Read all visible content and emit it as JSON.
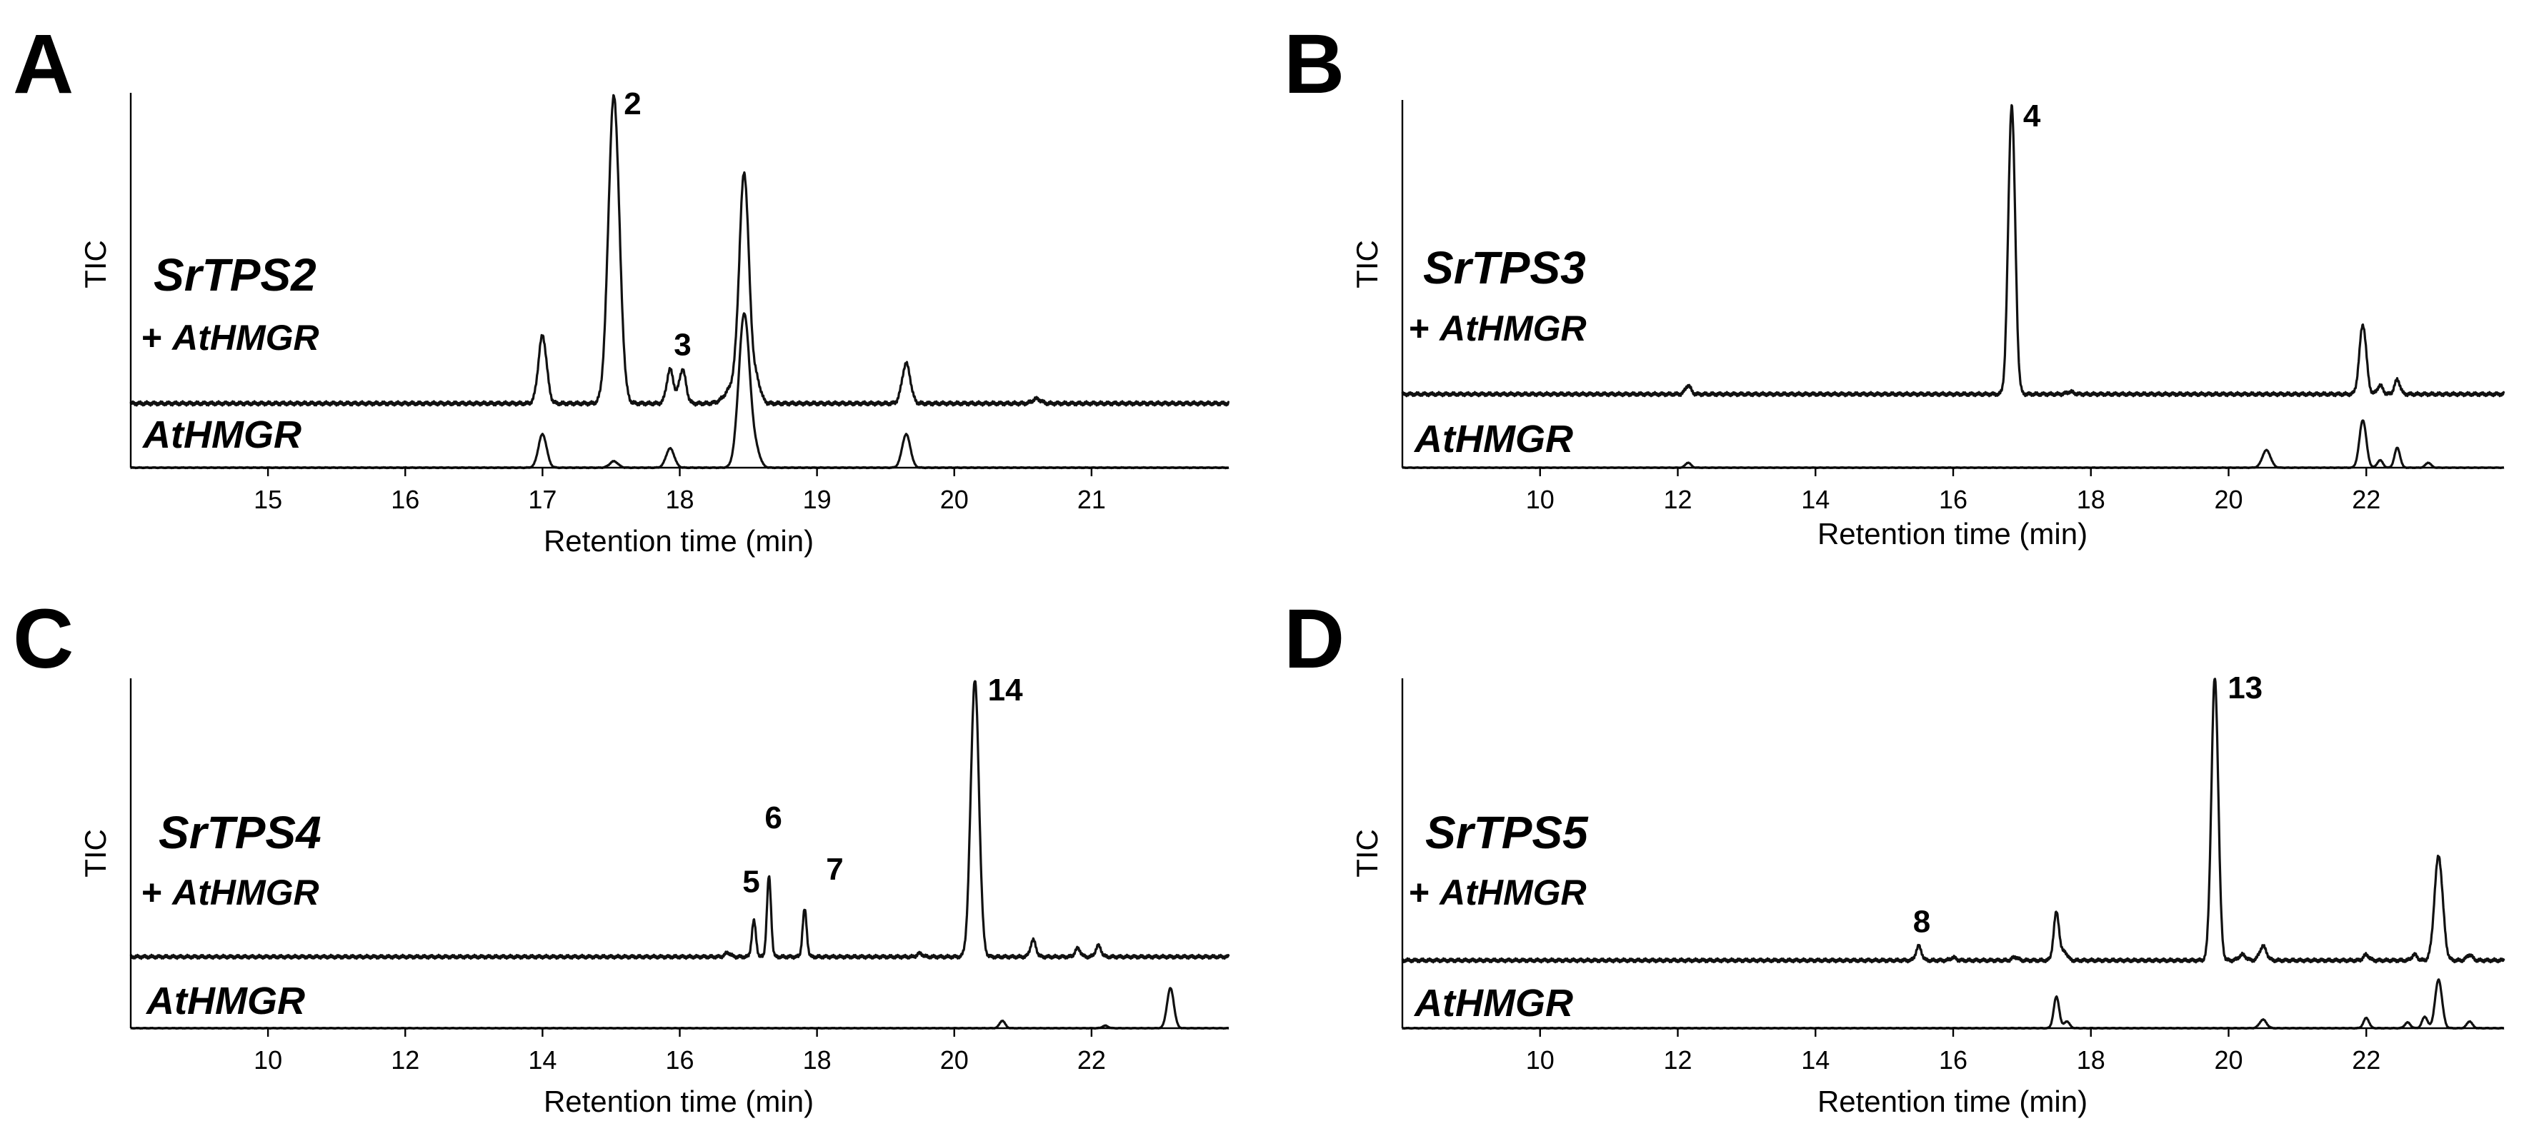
{
  "chart_data": [
    {
      "panel": "A",
      "type": "line",
      "ylabel": "TIC",
      "xlabel": "Retention time (min)",
      "xlim": [
        14.0,
        22.0
      ],
      "xticks": [
        15,
        16,
        17,
        18,
        19,
        20,
        21
      ],
      "sample_name": "SrTPS2",
      "sample_prefix": "+ ",
      "sample_cosubstrate": "AtHMGR",
      "control_name": "AtHMGR",
      "series": [
        {
          "name": "SrTPS2 + AtHMGR",
          "peaks": [
            {
              "x": 17.0,
              "h": 0.22,
              "w": 0.03
            },
            {
              "x": 17.52,
              "h": 1.0,
              "w": 0.04,
              "label": "2"
            },
            {
              "x": 17.93,
              "h": 0.11,
              "w": 0.025
            },
            {
              "x": 18.02,
              "h": 0.11,
              "w": 0.025,
              "label": "3"
            },
            {
              "x": 18.4,
              "h": 0.06,
              "w": 0.06
            },
            {
              "x": 18.47,
              "h": 0.72,
              "w": 0.035
            },
            {
              "x": 18.56,
              "h": 0.07,
              "w": 0.03
            },
            {
              "x": 19.65,
              "h": 0.13,
              "w": 0.03
            },
            {
              "x": 20.6,
              "h": 0.015,
              "w": 0.03
            }
          ]
        },
        {
          "name": "AtHMGR",
          "peaks": [
            {
              "x": 17.0,
              "h": 0.52,
              "w": 0.03
            },
            {
              "x": 17.52,
              "h": 0.1,
              "w": 0.03
            },
            {
              "x": 17.93,
              "h": 0.3,
              "w": 0.03
            },
            {
              "x": 18.47,
              "h": 2.4,
              "w": 0.04
            },
            {
              "x": 18.56,
              "h": 0.2,
              "w": 0.03
            },
            {
              "x": 19.65,
              "h": 0.52,
              "w": 0.03
            }
          ]
        }
      ]
    },
    {
      "panel": "B",
      "type": "line",
      "ylabel": "TIC",
      "xlabel": "Retention time (min)",
      "xlim": [
        8.0,
        24.0
      ],
      "xticks": [
        10,
        12,
        14,
        16,
        18,
        20,
        22
      ],
      "sample_name": "SrTPS3",
      "sample_prefix": "+ ",
      "sample_cosubstrate": "AtHMGR",
      "control_name": "AtHMGR",
      "series": [
        {
          "name": "SrTPS3 + AtHMGR",
          "peaks": [
            {
              "x": 12.15,
              "h": 0.03,
              "w": 0.04
            },
            {
              "x": 16.85,
              "h": 1.0,
              "w": 0.05,
              "label": "4"
            },
            {
              "x": 17.7,
              "h": 0.008,
              "w": 0.05
            },
            {
              "x": 21.95,
              "h": 0.24,
              "w": 0.05
            },
            {
              "x": 22.2,
              "h": 0.03,
              "w": 0.04
            },
            {
              "x": 22.45,
              "h": 0.05,
              "w": 0.04
            }
          ]
        },
        {
          "name": "AtHMGR",
          "peaks": [
            {
              "x": 12.15,
              "h": 0.1,
              "w": 0.04
            },
            {
              "x": 20.55,
              "h": 0.35,
              "w": 0.06
            },
            {
              "x": 21.95,
              "h": 0.95,
              "w": 0.05
            },
            {
              "x": 22.2,
              "h": 0.15,
              "w": 0.04
            },
            {
              "x": 22.45,
              "h": 0.4,
              "w": 0.04
            },
            {
              "x": 22.9,
              "h": 0.1,
              "w": 0.04
            }
          ]
        }
      ]
    },
    {
      "panel": "C",
      "type": "line",
      "ylabel": "TIC",
      "xlabel": "Retention time (min)",
      "xlim": [
        8.0,
        24.0
      ],
      "xticks": [
        10,
        12,
        14,
        16,
        18,
        20,
        22
      ],
      "sample_name": "SrTPS4",
      "sample_prefix": "+ ",
      "sample_cosubstrate": "AtHMGR",
      "control_name": "AtHMGR",
      "series": [
        {
          "name": "SrTPS4 + AtHMGR",
          "peaks": [
            {
              "x": 16.7,
              "h": 0.015,
              "w": 0.04
            },
            {
              "x": 17.08,
              "h": 0.13,
              "w": 0.03,
              "label": "5"
            },
            {
              "x": 17.3,
              "h": 0.29,
              "w": 0.03,
              "label": "6"
            },
            {
              "x": 17.82,
              "h": 0.17,
              "w": 0.03,
              "label": "7"
            },
            {
              "x": 19.5,
              "h": 0.012,
              "w": 0.04
            },
            {
              "x": 20.3,
              "h": 1.0,
              "w": 0.06,
              "label": "14"
            },
            {
              "x": 21.15,
              "h": 0.06,
              "w": 0.04
            },
            {
              "x": 21.8,
              "h": 0.03,
              "w": 0.04
            },
            {
              "x": 22.1,
              "h": 0.04,
              "w": 0.04
            }
          ]
        },
        {
          "name": "AtHMGR",
          "peaks": [
            {
              "x": 20.7,
              "h": 0.15,
              "w": 0.04
            },
            {
              "x": 22.2,
              "h": 0.05,
              "w": 0.04
            },
            {
              "x": 23.15,
              "h": 0.8,
              "w": 0.05
            }
          ]
        }
      ]
    },
    {
      "panel": "D",
      "type": "line",
      "ylabel": "TIC",
      "xlabel": "Retention time (min)",
      "xlim": [
        8.0,
        24.0
      ],
      "xticks": [
        10,
        12,
        14,
        16,
        18,
        20,
        22
      ],
      "sample_name": "SrTPS5",
      "sample_prefix": "+ ",
      "sample_cosubstrate": "AtHMGR",
      "control_name": "AtHMGR",
      "series": [
        {
          "name": "SrTPS5 + AtHMGR",
          "peaks": [
            {
              "x": 15.5,
              "h": 0.05,
              "w": 0.04,
              "label": "8"
            },
            {
              "x": 16.0,
              "h": 0.01,
              "w": 0.04
            },
            {
              "x": 16.9,
              "h": 0.012,
              "w": 0.04
            },
            {
              "x": 17.5,
              "h": 0.17,
              "w": 0.04
            },
            {
              "x": 17.62,
              "h": 0.03,
              "w": 0.04
            },
            {
              "x": 19.8,
              "h": 1.0,
              "w": 0.05,
              "label": "13"
            },
            {
              "x": 20.2,
              "h": 0.02,
              "w": 0.05
            },
            {
              "x": 20.5,
              "h": 0.05,
              "w": 0.05
            },
            {
              "x": 22.0,
              "h": 0.02,
              "w": 0.04
            },
            {
              "x": 22.7,
              "h": 0.02,
              "w": 0.04
            },
            {
              "x": 23.05,
              "h": 0.37,
              "w": 0.06
            },
            {
              "x": 23.5,
              "h": 0.02,
              "w": 0.04
            }
          ]
        },
        {
          "name": "AtHMGR",
          "peaks": [
            {
              "x": 17.5,
              "h": 0.55,
              "w": 0.04
            },
            {
              "x": 17.65,
              "h": 0.12,
              "w": 0.04
            },
            {
              "x": 20.5,
              "h": 0.15,
              "w": 0.05
            },
            {
              "x": 22.0,
              "h": 0.18,
              "w": 0.04
            },
            {
              "x": 22.6,
              "h": 0.1,
              "w": 0.04
            },
            {
              "x": 22.85,
              "h": 0.2,
              "w": 0.04
            },
            {
              "x": 23.05,
              "h": 0.85,
              "w": 0.05
            },
            {
              "x": 23.5,
              "h": 0.12,
              "w": 0.04
            }
          ]
        }
      ]
    }
  ]
}
